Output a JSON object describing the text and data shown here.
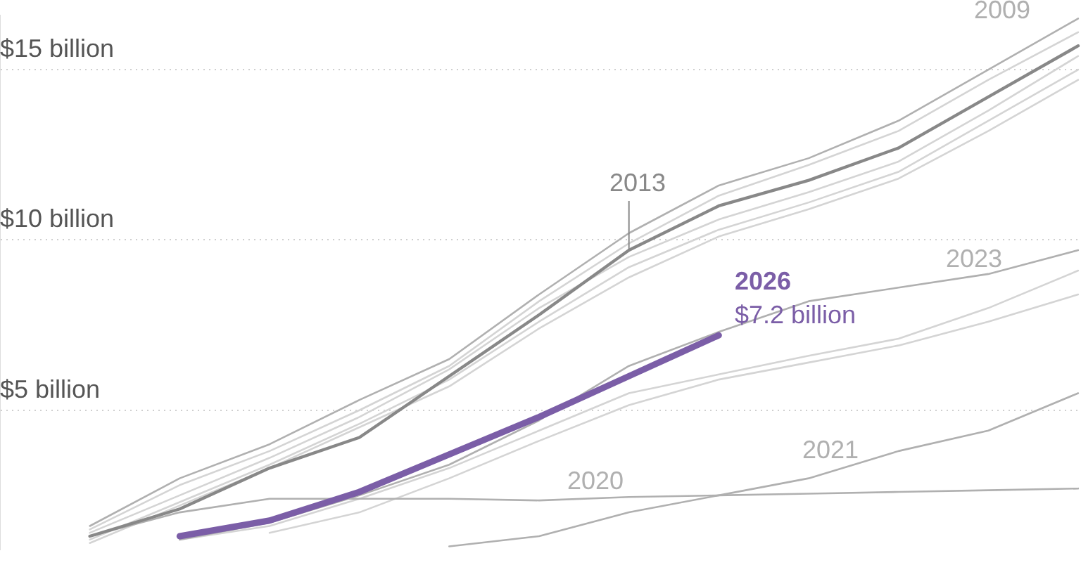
{
  "chart_data": {
    "type": "line",
    "categories": [
      null,
      null,
      null,
      null,
      null,
      null,
      null,
      null,
      null,
      null,
      null,
      null,
      null
    ],
    "series": [
      {
        "color": "#d4d4d4",
        "values": [
          null,
          1.5,
          2.8,
          3.8,
          5.0,
          6.3,
          8.2,
          9.9,
          11.3,
          12.2,
          13.2,
          14.7,
          16.1
        ]
      },
      {
        "color": "#d4d4d4",
        "values": [
          null,
          1.4,
          2.5,
          3.6,
          4.8,
          6.2,
          8.0,
          9.5,
          10.6,
          11.4,
          12.3,
          13.8,
          15.4
        ]
      },
      {
        "color": "#d4d4d4",
        "values": [
          null,
          1.2,
          2.3,
          3.4,
          4.6,
          5.9,
          7.6,
          9.2,
          10.3,
          11.1,
          12.0,
          13.5,
          15.0
        ]
      },
      {
        "color": "#d4d4d4",
        "values": [
          null,
          1.1,
          2.2,
          3.3,
          4.5,
          5.7,
          7.4,
          8.9,
          10.1,
          10.9,
          11.8,
          13.2,
          14.7
        ]
      },
      {
        "color": "#d4d4d4",
        "values": [
          null,
          null,
          1.2,
          1.6,
          2.4,
          3.3,
          4.4,
          5.5,
          6.05,
          6.6,
          7.1,
          8.0,
          9.1
        ]
      },
      {
        "color": "#d4d4d4",
        "values": [
          null,
          null,
          null,
          1.4,
          2.0,
          3.0,
          4.1,
          5.15,
          5.9,
          6.4,
          6.9,
          7.6,
          8.4
        ]
      },
      {
        "name": "2009",
        "color": "#b0b0b0",
        "values": [
          null,
          1.6,
          3.0,
          4.0,
          5.3,
          6.5,
          8.4,
          10.2,
          11.6,
          12.4,
          13.5,
          15.0,
          16.5
        ]
      },
      {
        "name": "2020",
        "color": "#b0b0b0",
        "values": [
          null,
          1.3,
          2.0,
          2.4,
          2.4,
          2.4,
          2.35,
          2.45,
          2.5,
          2.55,
          2.6,
          2.65,
          2.7
        ]
      },
      {
        "name": "2021",
        "color": "#b0b0b0",
        "values": [
          null,
          null,
          null,
          null,
          null,
          1.0,
          1.3,
          2.0,
          2.5,
          3.0,
          3.8,
          4.4,
          5.5
        ]
      },
      {
        "name": "2023",
        "color": "#b0b0b0",
        "values": [
          null,
          null,
          1.2,
          1.7,
          2.5,
          3.4,
          4.7,
          6.3,
          7.3,
          8.2,
          8.6,
          9.0,
          9.7
        ]
      },
      {
        "name": "2013",
        "color": "#888888",
        "values": [
          null,
          1.3,
          2.1,
          3.3,
          4.2,
          6.0,
          7.8,
          9.7,
          11.0,
          11.75,
          12.7,
          14.2,
          15.7
        ]
      },
      {
        "name": "2026",
        "color": "#7b5ea7",
        "values": [
          null,
          null,
          1.3,
          1.76,
          2.6,
          3.7,
          4.8,
          6.0,
          7.2,
          null,
          null,
          null,
          null
        ]
      }
    ],
    "ylim": [
      0.9,
      16.6
    ],
    "yticks": [
      {
        "value": 5,
        "label": "$5 billion"
      },
      {
        "value": 10,
        "label": "$10 billion"
      },
      {
        "value": 15,
        "label": "$15 billion"
      }
    ],
    "tick_labels": "y",
    "grid": "y",
    "legend": false,
    "marker": "none",
    "line_style": "solid",
    "annotations": [
      "$7.2 billion"
    ]
  }
}
